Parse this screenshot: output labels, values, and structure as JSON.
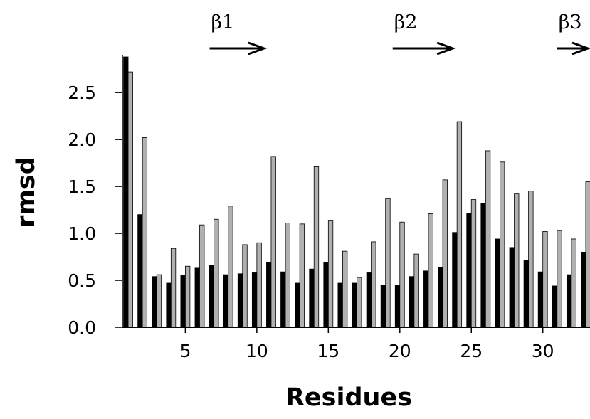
{
  "chart_data": {
    "type": "bar",
    "xlabel": "Residues",
    "ylabel": "rmsd",
    "ylim": [
      0,
      2.88
    ],
    "xlim": [
      0.6,
      33.3
    ],
    "yticks": [
      "0.0",
      "0.5",
      "1.0",
      "1.5",
      "2.0",
      "2.5"
    ],
    "xticks": [
      "5",
      "10",
      "15",
      "20",
      "25",
      "30"
    ],
    "categories": [
      1,
      2,
      3,
      4,
      5,
      6,
      7,
      8,
      9,
      10,
      11,
      12,
      13,
      14,
      15,
      16,
      17,
      18,
      19,
      20,
      21,
      22,
      23,
      24,
      25,
      26,
      27,
      28,
      29,
      30,
      31,
      32,
      33
    ],
    "series": [
      {
        "color": "#000000",
        "values": [
          2.88,
          1.2,
          0.54,
          0.47,
          0.55,
          0.63,
          0.66,
          0.56,
          0.57,
          0.58,
          0.69,
          0.59,
          0.47,
          0.62,
          0.69,
          0.47,
          0.47,
          0.58,
          0.45,
          0.45,
          0.54,
          0.6,
          0.64,
          1.01,
          1.21,
          1.32,
          0.94,
          0.85,
          0.71,
          0.59,
          0.44,
          0.56,
          0.8
        ]
      },
      {
        "color": "#b0b0b0",
        "values": [
          2.72,
          2.02,
          0.56,
          0.84,
          0.65,
          1.09,
          1.15,
          1.29,
          0.88,
          0.9,
          1.82,
          1.11,
          1.1,
          1.71,
          1.14,
          0.81,
          0.53,
          0.91,
          1.37,
          1.12,
          0.78,
          1.21,
          1.57,
          2.19,
          1.36,
          1.88,
          1.76,
          1.42,
          1.45,
          1.02,
          1.03,
          0.94,
          1.55
        ]
      }
    ],
    "annotations": [
      {
        "label": "β1",
        "x_start": 6.7,
        "x_end": 10.5
      },
      {
        "label": "β2",
        "x_start": 19.5,
        "x_end": 23.7
      },
      {
        "label": "β3",
        "x_start": 31.0,
        "x_end": 33.3
      }
    ],
    "grid": false,
    "legend": "none"
  }
}
